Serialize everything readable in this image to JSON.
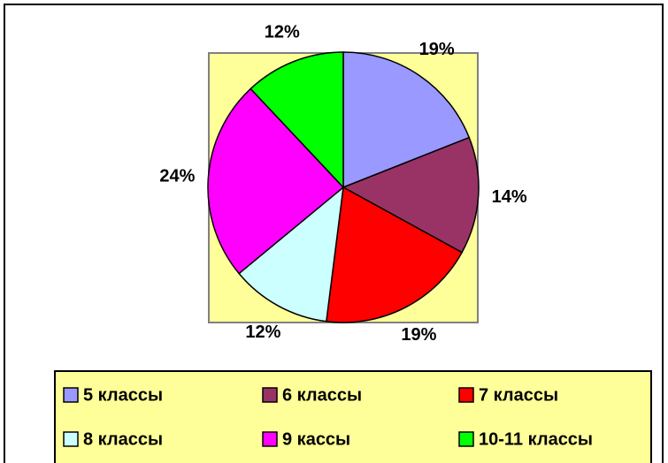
{
  "chart_data": {
    "type": "pie",
    "categories": [
      "5 классы",
      "6 классы",
      "7 классы",
      "8 классы",
      "9 кассы",
      "10-11 классы"
    ],
    "values": [
      19,
      14,
      19,
      12,
      24,
      12
    ],
    "value_labels": [
      "19%",
      "14%",
      "19%",
      "12%",
      "24%",
      "12%"
    ],
    "colors": [
      "#9999ff",
      "#993366",
      "#ff0000",
      "#ccffff",
      "#ff00ff",
      "#00ff00"
    ]
  }
}
